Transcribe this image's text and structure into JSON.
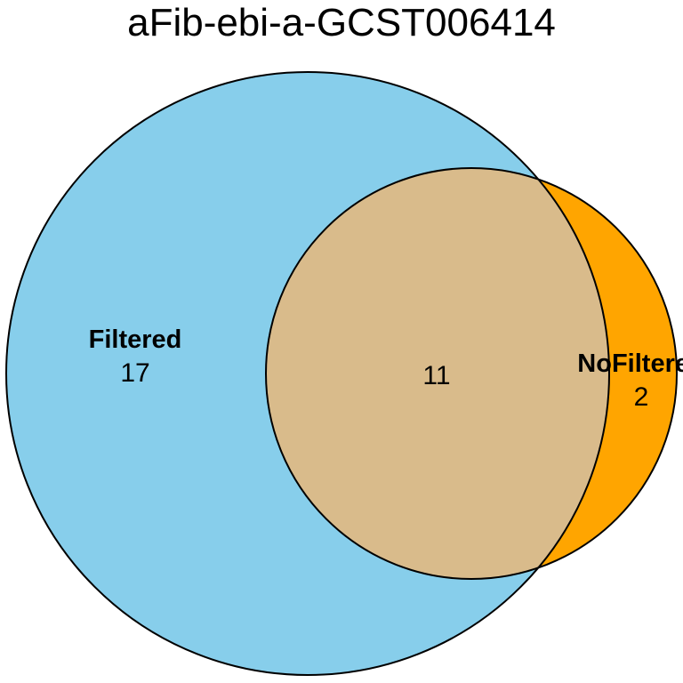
{
  "title": "aFib-ebi-a-GCST006414",
  "sets": [
    {
      "name": "Filtered",
      "only_count": "17",
      "color": "#87CEEB"
    },
    {
      "name": "NoFiltered",
      "only_count": "2",
      "color": "#FFA500"
    }
  ],
  "intersection": {
    "count": "11",
    "color": "#D9BB8B"
  },
  "outline_color": "#000000"
}
